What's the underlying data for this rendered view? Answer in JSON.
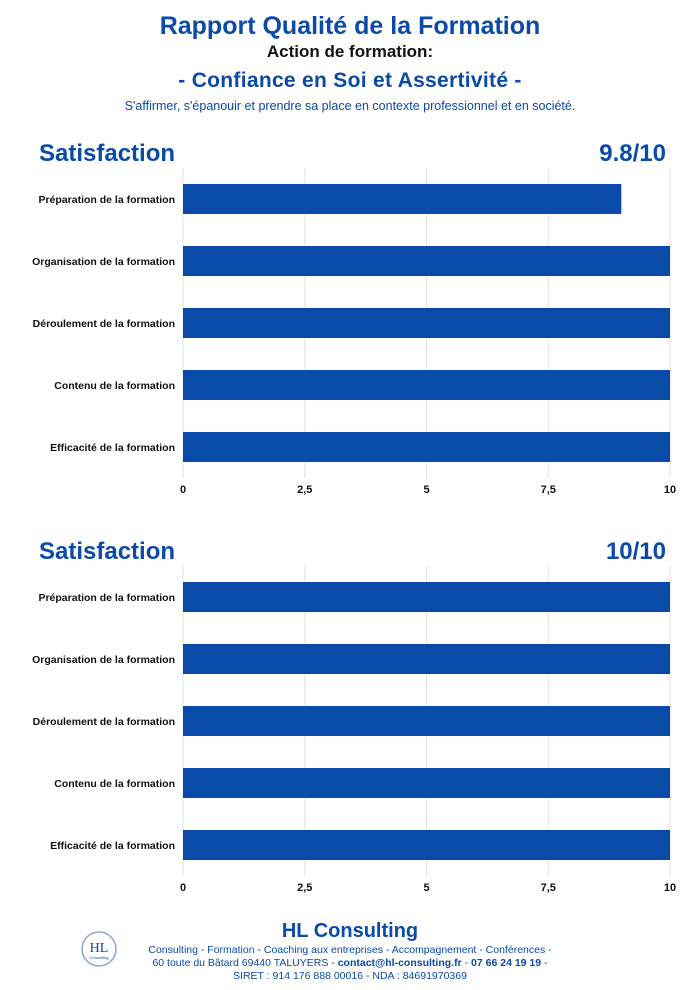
{
  "header": {
    "title": "Rapport Qualité de la Formation",
    "action_label": "Action de formation:",
    "course": "- Confiance en Soi et Assertivité -",
    "subtitle": "S'affirmer, s'épanouir et prendre sa place en contexte professionnel et en société."
  },
  "sections": [
    {
      "title": "Satisfaction",
      "score": "9.8/10"
    },
    {
      "title": "Satisfaction",
      "score": "10/10"
    }
  ],
  "chart_data": [
    {
      "type": "bar",
      "orientation": "horizontal",
      "categories": [
        "Préparation de la formation",
        "Organisation de la formation",
        "Déroulement de la formation",
        "Contenu de la formation",
        "Efficacité de la formation"
      ],
      "values": [
        9,
        10,
        10,
        10,
        10
      ],
      "xlim": [
        0,
        10
      ],
      "xticks": [
        "0",
        "2,5",
        "5",
        "7,5",
        "10"
      ],
      "grid": "vertical",
      "color": "#0a4aa8"
    },
    {
      "type": "bar",
      "orientation": "horizontal",
      "categories": [
        "Préparation de la formation",
        "Organisation de la formation",
        "Déroulement de la formation",
        "Contenu de la formation",
        "Efficacité de la formation"
      ],
      "values": [
        10,
        10,
        10,
        10,
        10
      ],
      "xlim": [
        0,
        10
      ],
      "xticks": [
        "0",
        "2,5",
        "5",
        "7,5",
        "10"
      ],
      "grid": "vertical",
      "color": "#0a4aa8"
    }
  ],
  "footer": {
    "brand": "HL Consulting",
    "services": "Consulting - Formation - Coaching aux entreprises - Accompagnement - Conférences -",
    "address": "60 toute du Bâtard 69440 TALUYERS - ",
    "email": "contact@hl-consulting.fr",
    "sep": " - ",
    "phone": "07 66 24 19 19",
    "end": " -",
    "legal": "SIRET : 914 176 888 00016 - NDA : 84691970369",
    "logo_text": "HL",
    "logo_small": "Consulting"
  }
}
